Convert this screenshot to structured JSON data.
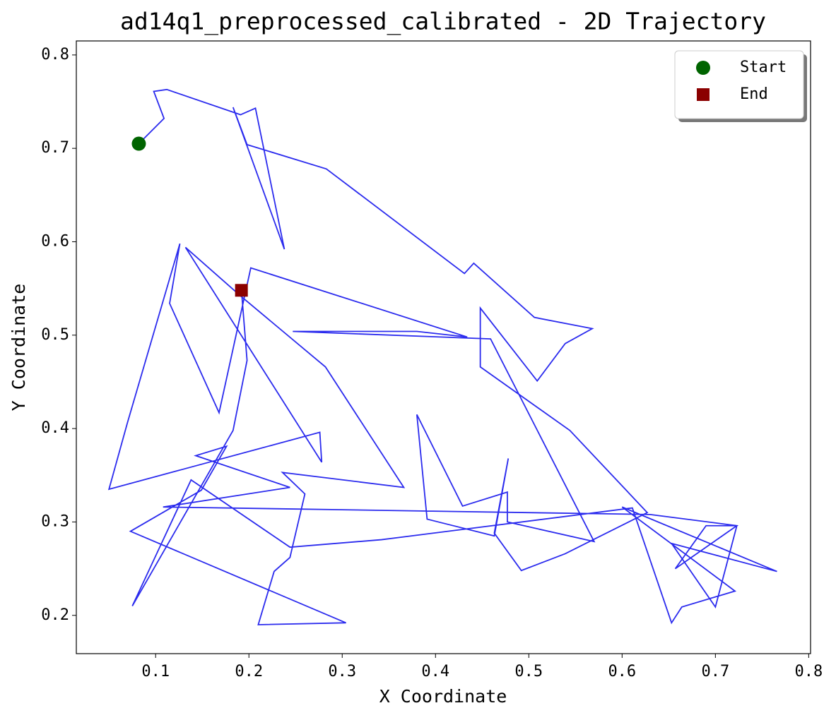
{
  "chart_data": {
    "type": "line",
    "title": "ad14q1_preprocessed_calibrated - 2D Trajectory",
    "x_label": "X Coordinate",
    "y_label": "Y Coordinate",
    "xlim": [
      0.015,
      0.802
    ],
    "ylim": [
      0.159,
      0.815
    ],
    "xticks": [
      0.1,
      0.2,
      0.3,
      0.4,
      0.5,
      0.6,
      0.7,
      0.8
    ],
    "yticks": [
      0.2,
      0.3,
      0.4,
      0.5,
      0.6,
      0.7,
      0.8
    ],
    "legend": "upper right",
    "series": [
      {
        "type": "line",
        "color": "#2b2bee",
        "x": [
          0.082,
          0.109,
          0.098,
          0.112,
          0.191,
          0.207,
          0.238,
          0.183,
          0.198,
          0.283,
          0.431,
          0.441,
          0.506,
          0.568,
          0.539,
          0.509,
          0.448,
          0.448,
          0.544,
          0.627,
          0.539,
          0.492,
          0.463,
          0.478,
          0.463,
          0.391,
          0.38,
          0.429,
          0.477,
          0.477,
          0.57,
          0.459,
          0.247,
          0.38,
          0.434,
          0.202,
          0.168,
          0.115,
          0.126,
          0.07,
          0.05,
          0.276,
          0.278,
          0.132,
          0.191,
          0.282,
          0.366,
          0.236,
          0.26,
          0.244,
          0.227,
          0.21,
          0.304,
          0.073,
          0.149,
          0.176,
          0.143,
          0.244,
          0.108,
          0.63,
          0.723,
          0.657,
          0.69,
          0.723,
          0.7,
          0.653,
          0.766,
          0.6,
          0.721,
          0.664,
          0.653,
          0.611,
          0.342,
          0.244,
          0.138,
          0.075,
          0.183,
          0.198,
          0.192
        ],
        "values": [
          0.705,
          0.732,
          0.761,
          0.763,
          0.736,
          0.743,
          0.592,
          0.744,
          0.704,
          0.678,
          0.566,
          0.577,
          0.519,
          0.507,
          0.491,
          0.451,
          0.529,
          0.466,
          0.398,
          0.31,
          0.266,
          0.248,
          0.288,
          0.368,
          0.285,
          0.303,
          0.415,
          0.317,
          0.332,
          0.3,
          0.279,
          0.496,
          0.504,
          0.504,
          0.498,
          0.572,
          0.417,
          0.534,
          0.598,
          0.407,
          0.335,
          0.396,
          0.364,
          0.594,
          0.542,
          0.466,
          0.337,
          0.353,
          0.33,
          0.262,
          0.247,
          0.19,
          0.192,
          0.29,
          0.334,
          0.381,
          0.371,
          0.337,
          0.316,
          0.308,
          0.296,
          0.25,
          0.296,
          0.296,
          0.209,
          0.277,
          0.247,
          0.316,
          0.226,
          0.209,
          0.192,
          0.315,
          0.281,
          0.273,
          0.345,
          0.21,
          0.398,
          0.473,
          0.548
        ]
      },
      {
        "type": "scatter",
        "name": "Start",
        "marker": "circle",
        "color": "#006400",
        "x": [
          0.082
        ],
        "values": [
          0.705
        ]
      },
      {
        "type": "scatter",
        "name": "End",
        "marker": "square",
        "color": "#8b0000",
        "x": [
          0.192
        ],
        "values": [
          0.548
        ]
      }
    ]
  }
}
